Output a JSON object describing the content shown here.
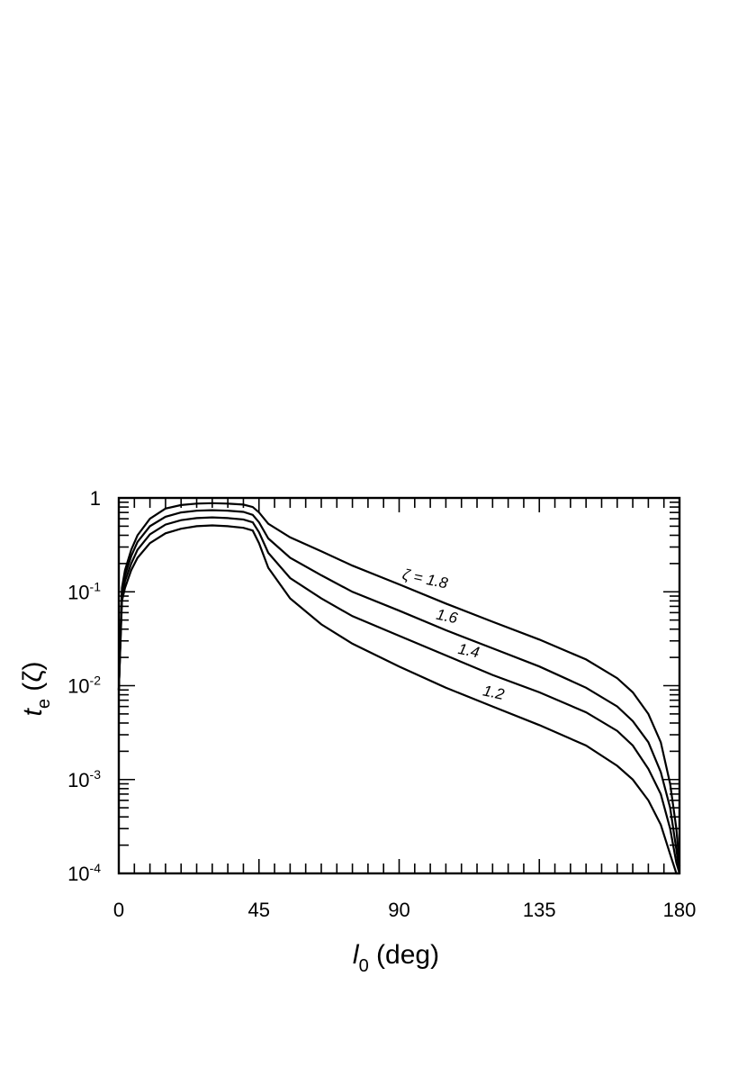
{
  "chart_data": {
    "type": "line",
    "title": "",
    "xlabel": {
      "main": "l",
      "sub": "0",
      "rest": " (deg)"
    },
    "ylabel": {
      "main": "t",
      "sub": "e",
      "rest": " (ζ)"
    },
    "xlim": [
      0,
      180
    ],
    "ylim": [
      0.0001,
      1
    ],
    "yscale": "log",
    "grid": false,
    "x_ticks": [
      {
        "value": 0,
        "label": "0"
      },
      {
        "value": 45,
        "label": "45"
      },
      {
        "value": 90,
        "label": "90"
      },
      {
        "value": 135,
        "label": "135"
      },
      {
        "value": 180,
        "label": "180"
      }
    ],
    "y_ticks": [
      {
        "value": 1,
        "base": "1",
        "exp": ""
      },
      {
        "value": 0.1,
        "base": "10",
        "exp": "-1"
      },
      {
        "value": 0.01,
        "base": "10",
        "exp": "-2"
      },
      {
        "value": 0.001,
        "base": "10",
        "exp": "-3"
      },
      {
        "value": 0.0001,
        "base": "10",
        "exp": "-4"
      }
    ],
    "x": [
      0,
      1,
      2,
      4,
      6,
      10,
      15,
      20,
      25,
      30,
      35,
      40,
      43,
      45,
      48,
      55,
      65,
      75,
      90,
      105,
      120,
      135,
      150,
      160,
      165,
      170,
      174,
      177,
      179,
      180
    ],
    "series": [
      {
        "label": "ζ = 1.8",
        "values": [
          0.009,
          0.11,
          0.17,
          0.28,
          0.4,
          0.6,
          0.77,
          0.84,
          0.87,
          0.88,
          0.87,
          0.85,
          0.8,
          0.7,
          0.53,
          0.38,
          0.27,
          0.19,
          0.12,
          0.075,
          0.048,
          0.031,
          0.019,
          0.012,
          0.0085,
          0.005,
          0.0025,
          0.0009,
          0.0003,
          0.00012
        ]
      },
      {
        "label": "1.6",
        "values": [
          0.009,
          0.1,
          0.15,
          0.24,
          0.34,
          0.5,
          0.63,
          0.7,
          0.73,
          0.74,
          0.73,
          0.71,
          0.66,
          0.55,
          0.37,
          0.23,
          0.15,
          0.1,
          0.063,
          0.039,
          0.025,
          0.016,
          0.0095,
          0.006,
          0.0042,
          0.0025,
          0.0012,
          0.0005,
          0.00018,
          0.0001
        ]
      },
      {
        "label": "1.4",
        "values": [
          0.009,
          0.09,
          0.13,
          0.2,
          0.28,
          0.41,
          0.52,
          0.58,
          0.61,
          0.62,
          0.61,
          0.59,
          0.55,
          0.43,
          0.26,
          0.14,
          0.085,
          0.055,
          0.034,
          0.021,
          0.013,
          0.0085,
          0.0052,
          0.0033,
          0.0023,
          0.0013,
          0.0007,
          0.0003,
          0.00013,
          0.0001
        ]
      },
      {
        "label": "1.2",
        "values": [
          0.009,
          0.08,
          0.11,
          0.17,
          0.23,
          0.33,
          0.42,
          0.47,
          0.5,
          0.51,
          0.5,
          0.48,
          0.45,
          0.33,
          0.18,
          0.085,
          0.045,
          0.028,
          0.016,
          0.0095,
          0.006,
          0.0038,
          0.0023,
          0.0014,
          0.001,
          0.0006,
          0.00033,
          0.00016,
          0.0001,
          0.0001
        ]
      }
    ]
  }
}
